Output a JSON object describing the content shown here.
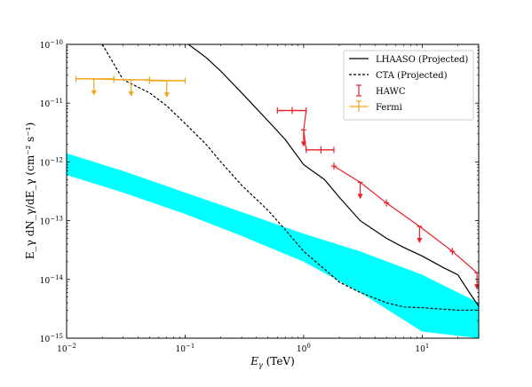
{
  "chart_data": {
    "type": "line",
    "xlabel_main": "E",
    "xlabel_sub": "γ",
    "xlabel_unit": " (TeV)",
    "ylabel": "E_γ dN_γ/dE_γ (cm⁻² s⁻¹)",
    "x_scale": "log",
    "y_scale": "log",
    "xlim": [
      0.01,
      30
    ],
    "ylim": [
      1e-15,
      1e-10
    ],
    "x_ticks": [
      {
        "value": 0.01,
        "base": "10",
        "exp": "−2"
      },
      {
        "value": 0.1,
        "base": "10",
        "exp": "−1"
      },
      {
        "value": 1,
        "base": "10",
        "exp": "0"
      },
      {
        "value": 10,
        "base": "10",
        "exp": "1"
      }
    ],
    "y_ticks": [
      {
        "value": 1e-15,
        "base": "10",
        "exp": "−15"
      },
      {
        "value": 1e-14,
        "base": "10",
        "exp": "−14"
      },
      {
        "value": 1e-13,
        "base": "10",
        "exp": "−13"
      },
      {
        "value": 1e-12,
        "base": "10",
        "exp": "−12"
      },
      {
        "value": 1e-11,
        "base": "10",
        "exp": "−11"
      },
      {
        "value": 1e-10,
        "base": "10",
        "exp": "−10"
      }
    ],
    "grid": false,
    "legend_position": "top-right",
    "series": [
      {
        "name": "LHAASO (Projected)",
        "kind": "line",
        "style": "solid",
        "color": "#000000",
        "x": [
          0.1,
          0.15,
          0.2,
          0.3,
          0.5,
          0.7,
          1.0,
          1.5,
          2.0,
          3.0,
          5.0,
          7.0,
          10.0,
          15.0,
          20.0,
          25.0,
          30.0
        ],
        "y": [
          1.1e-10,
          6e-11,
          3.5e-11,
          1.5e-11,
          5e-12,
          2.4e-12,
          9e-13,
          5e-13,
          2.5e-13,
          1e-13,
          5e-14,
          3.5e-14,
          2.5e-14,
          1.6e-14,
          1.2e-14,
          6e-15,
          3.5e-15
        ]
      },
      {
        "name": "CTA (Projected)",
        "kind": "line",
        "style": "dashed",
        "color": "#000000",
        "x": [
          0.02,
          0.03,
          0.05,
          0.07,
          0.1,
          0.15,
          0.2,
          0.3,
          0.5,
          0.7,
          1.0,
          1.5,
          2.0,
          3.0,
          5.0,
          7.0,
          10.0,
          20.0,
          30.0
        ],
        "y": [
          1e-10,
          2.5e-11,
          1.5e-11,
          9e-12,
          4.5e-12,
          2e-12,
          1e-12,
          4e-13,
          1.5e-13,
          7e-14,
          3e-14,
          1.5e-14,
          9e-15,
          6e-15,
          4e-15,
          3.4e-15,
          3.3e-15,
          3e-15,
          3e-15
        ]
      },
      {
        "name": "HAWC",
        "kind": "errorbar",
        "color": "#e8202a",
        "points": [
          {
            "x": 0.8,
            "xlo": 0.6,
            "xhi": 1.05,
            "y": 7.5e-12,
            "upper_limit": false
          },
          {
            "x": 1.0,
            "xlo": 1.0,
            "xhi": 1.0,
            "y": 3.5e-12,
            "upper_limit": true
          },
          {
            "x": 1.4,
            "xlo": 1.05,
            "xhi": 1.8,
            "y": 1.6e-12,
            "upper_limit": false
          },
          {
            "x": 1.8,
            "xlo": 1.8,
            "xhi": 1.8,
            "y": 8.5e-13,
            "upper_limit": false
          },
          {
            "x": 3.0,
            "xlo": 3.0,
            "xhi": 3.0,
            "y": 4.5e-13,
            "upper_limit": true
          },
          {
            "x": 5.0,
            "xlo": 5.0,
            "xhi": 5.0,
            "y": 2e-13,
            "upper_limit": false
          },
          {
            "x": 9.5,
            "xlo": 9.5,
            "xhi": 9.5,
            "y": 8e-14,
            "upper_limit": true
          },
          {
            "x": 18.0,
            "xlo": 18.0,
            "xhi": 18.0,
            "y": 3e-14,
            "upper_limit": false
          },
          {
            "x": 29.0,
            "xlo": 29.0,
            "xhi": 29.0,
            "y": 1.3e-14,
            "upper_limit": true
          }
        ]
      },
      {
        "name": "Fermi",
        "kind": "errorbar",
        "color": "#f2a61a",
        "points": [
          {
            "x": 0.017,
            "xlo": 0.012,
            "xhi": 0.025,
            "y": 2.6e-11,
            "upper_limit": true
          },
          {
            "x": 0.035,
            "xlo": 0.025,
            "xhi": 0.05,
            "y": 2.5e-11,
            "upper_limit": true
          },
          {
            "x": 0.07,
            "xlo": 0.05,
            "xhi": 0.1,
            "y": 2.4e-11,
            "upper_limit": true
          }
        ]
      },
      {
        "kind": "band",
        "color": "#00ffff",
        "x": [
          0.01,
          0.03,
          0.1,
          0.3,
          1.0,
          3.0,
          10.0,
          30.0
        ],
        "y_lower": [
          6e-13,
          3e-13,
          1.3e-13,
          5.5e-14,
          2e-14,
          6e-15,
          1.3e-15,
          1e-15
        ],
        "y_upper": [
          1.4e-12,
          7e-13,
          3e-13,
          1.4e-13,
          6e-14,
          3e-14,
          1.2e-14,
          4e-15
        ]
      }
    ],
    "legend": [
      {
        "label": "LHAASO (Projected)",
        "marker": "solid-line",
        "color": "#000000"
      },
      {
        "label": "CTA (Projected)",
        "marker": "dashed-line",
        "color": "#000000"
      },
      {
        "label": "HAWC",
        "marker": "errorbar",
        "color": "#e8202a"
      },
      {
        "label": "Fermi",
        "marker": "errorbar",
        "color": "#f2a61a"
      }
    ]
  }
}
